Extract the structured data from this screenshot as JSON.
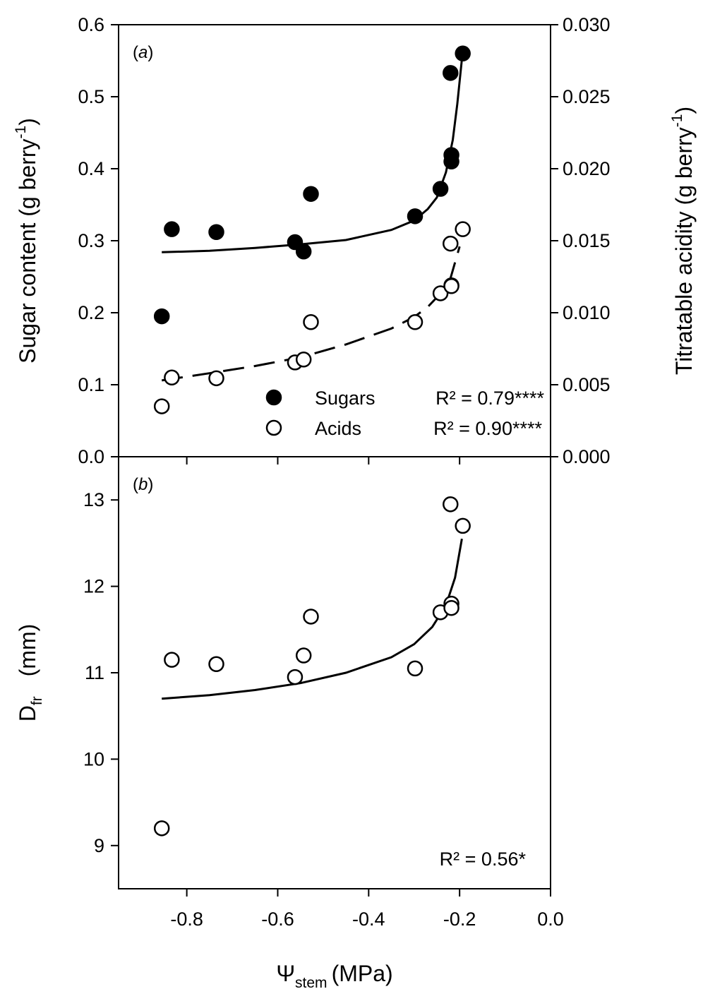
{
  "chart_data": [
    {
      "panel": "a",
      "type": "scatter",
      "panel_label_letter": "a",
      "xlabel": {
        "symbol": "Ψ",
        "subscript": "stem",
        "unit": "(MPa)"
      },
      "xlim": [
        -0.95,
        0.0
      ],
      "xticks": [
        "-0.8",
        "-0.6",
        "-0.4",
        "-0.2",
        "0.0"
      ],
      "xtick_values": [
        -0.8,
        -0.6,
        -0.4,
        -0.2,
        0.0
      ],
      "ylabel_left": {
        "text": "Sugar content (g berry",
        "superscript": "-1",
        "close": ")"
      },
      "ylim_left": [
        0,
        0.6
      ],
      "yticks_left": [
        "0.0",
        "0.1",
        "0.2",
        "0.3",
        "0.4",
        "0.5",
        "0.6"
      ],
      "ylabel_right": {
        "text": "Titratable acidity (g berry",
        "superscript": "-1",
        "close": ")"
      },
      "ylim_right": [
        0,
        0.03
      ],
      "yticks_right": [
        "0.000",
        "0.005",
        "0.010",
        "0.015",
        "0.020",
        "0.025",
        "0.030"
      ],
      "legend": {
        "placement": "bottom-right"
      },
      "series": [
        {
          "name": "Sugars",
          "stat": "R² = 0.79****",
          "marker": "filled-circle",
          "line": "solid",
          "axis": "left",
          "points": [
            [
              -0.855,
              0.195
            ],
            [
              -0.833,
              0.316
            ],
            [
              -0.735,
              0.312
            ],
            [
              -0.562,
              0.298
            ],
            [
              -0.543,
              0.285
            ],
            [
              -0.527,
              0.365
            ],
            [
              -0.298,
              0.334
            ],
            [
              -0.242,
              0.372
            ],
            [
              -0.218,
              0.419
            ],
            [
              -0.218,
              0.41
            ],
            [
              -0.22,
              0.533
            ],
            [
              -0.193,
              0.56
            ]
          ],
          "fit": [
            [
              -0.855,
              0.284
            ],
            [
              -0.75,
              0.286
            ],
            [
              -0.65,
              0.29
            ],
            [
              -0.55,
              0.295
            ],
            [
              -0.45,
              0.301
            ],
            [
              -0.35,
              0.315
            ],
            [
              -0.3,
              0.328
            ],
            [
              -0.27,
              0.344
            ],
            [
              -0.25,
              0.36
            ],
            [
              -0.23,
              0.395
            ],
            [
              -0.215,
              0.44
            ],
            [
              -0.205,
              0.49
            ],
            [
              -0.195,
              0.552
            ]
          ]
        },
        {
          "name": "Acids",
          "stat": "R² = 0.90****",
          "marker": "open-circle",
          "line": "dashed",
          "axis": "right",
          "points": [
            [
              -0.855,
              0.0035
            ],
            [
              -0.833,
              0.0055
            ],
            [
              -0.735,
              0.00545
            ],
            [
              -0.562,
              0.00655
            ],
            [
              -0.543,
              0.00675
            ],
            [
              -0.527,
              0.00935
            ],
            [
              -0.298,
              0.00935
            ],
            [
              -0.242,
              0.01135
            ],
            [
              -0.218,
              0.0119
            ],
            [
              -0.218,
              0.01185
            ],
            [
              -0.22,
              0.0148
            ],
            [
              -0.193,
              0.0158
            ]
          ],
          "fit": [
            [
              -0.855,
              0.0053
            ],
            [
              -0.75,
              0.0058
            ],
            [
              -0.65,
              0.0063
            ],
            [
              -0.55,
              0.0069
            ],
            [
              -0.45,
              0.0078
            ],
            [
              -0.35,
              0.0089
            ],
            [
              -0.3,
              0.0097
            ],
            [
              -0.27,
              0.0104
            ],
            [
              -0.24,
              0.0114
            ],
            [
              -0.22,
              0.0124
            ],
            [
              -0.2,
              0.0146
            ]
          ]
        }
      ]
    },
    {
      "panel": "b",
      "type": "scatter",
      "panel_label_letter": "b",
      "xlim": [
        -0.95,
        0.0
      ],
      "ylabel": {
        "text": "D",
        "subscript": "fr",
        "unit": "(mm)"
      },
      "ylim": [
        8.5,
        13.5
      ],
      "yticks": [
        "9",
        "10",
        "11",
        "12",
        "13"
      ],
      "ytick_values": [
        9,
        10,
        11,
        12,
        13
      ],
      "stat": "R² = 0.56*",
      "series": [
        {
          "marker": "open-circle",
          "line": "solid",
          "points": [
            [
              -0.855,
              9.2
            ],
            [
              -0.833,
              11.15
            ],
            [
              -0.735,
              11.1
            ],
            [
              -0.562,
              10.95
            ],
            [
              -0.543,
              11.2
            ],
            [
              -0.527,
              11.65
            ],
            [
              -0.298,
              11.05
            ],
            [
              -0.242,
              11.7
            ],
            [
              -0.218,
              11.8
            ],
            [
              -0.218,
              11.75
            ],
            [
              -0.22,
              12.95
            ],
            [
              -0.193,
              12.7
            ]
          ],
          "fit": [
            [
              -0.855,
              10.7
            ],
            [
              -0.75,
              10.74
            ],
            [
              -0.65,
              10.8
            ],
            [
              -0.55,
              10.88
            ],
            [
              -0.45,
              11.0
            ],
            [
              -0.35,
              11.18
            ],
            [
              -0.3,
              11.33
            ],
            [
              -0.26,
              11.53
            ],
            [
              -0.23,
              11.78
            ],
            [
              -0.21,
              12.1
            ],
            [
              -0.195,
              12.55
            ]
          ]
        }
      ]
    }
  ]
}
